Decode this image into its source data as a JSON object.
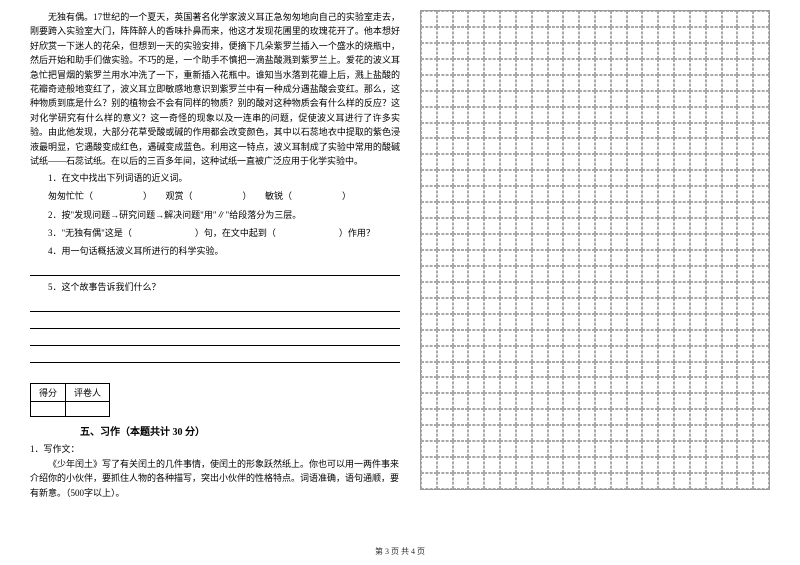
{
  "passage": {
    "text": "无独有偶。17世纪的一个夏天，英国著名化学家波义耳正急匆匆地向自己的实验室走去，刚要跨入实验室大门，阵阵醉人的香味扑鼻而来，他这才发现花圃里的玫瑰花开了。他本想好好欣赏一下迷人的花朵，但想到一天的实验安排，便摘下几朵紫罗兰插入一个盛水的烧瓶中，然后开始和助手们做实验。不巧的是，一个助手不慎把一滴盐酸溅到紫罗兰上。爱花的波义耳急忙把冒烟的紫罗兰用水冲洗了一下，重新插入花瓶中。谁知当水落到花瓣上后，溅上盐酸的花瓣奇迹般地变红了，波义耳立即敏感地意识到紫罗兰中有一种成分遇盐酸会变红。那么，这种物质到底是什么？别的植物会不会有同样的物质？别的酸对这种物质会有什么样的反应？这对化学研究有什么样的意义？这一奇怪的现象以及一连串的问题，促使波义耳进行了许多实验。由此他发现，大部分花草受酸或碱的作用都会改变颜色，其中以石蕊地衣中提取的紫色浸液最明显，它遇酸变成红色，遇碱变成蓝色。利用这一特点，波义耳制成了实验中常用的酸碱试纸——石蕊试纸。在以后的三百多年间，这种试纸一直被广泛应用于化学实验中。"
  },
  "questions": {
    "q1": {
      "label": "1．在文中找出下列词语的近义词。",
      "items": {
        "a": "匆匆忙忙（",
        "b": "）　　观赏（",
        "c": "）　　敏锐（",
        "d": "）"
      }
    },
    "q2": {
      "label": "2．按\"发现问题→研究问题→解决问题\"用\"∥\"给段落分为三层。"
    },
    "q3": {
      "label": "3．\"无独有偶\"这是（　　　　　　　）句，在文中起到（　　　　　　　）作用？"
    },
    "q4": {
      "label": "4．用一句话概括波义耳所进行的科学实验。"
    },
    "q5": {
      "label": "5．这个故事告诉我们什么？"
    }
  },
  "scoreTable": {
    "col1": "得分",
    "col2": "评卷人"
  },
  "section5": {
    "title": "五、习作（本题共计 30 分）",
    "q1": "1．写作文：",
    "content": "《少年闰土》写了有关闰土的几件事情，使闰土的形象跃然纸上。你也可以用一两件事来介绍你的小伙伴，要抓住人物的各种描写，突出小伙伴的性格特点。词语准确，语句通顺，要有新意。（500字以上）。"
  },
  "footer": "第 3 页 共 4 页",
  "gridConfig": {
    "cols": 22,
    "rows": 30
  }
}
